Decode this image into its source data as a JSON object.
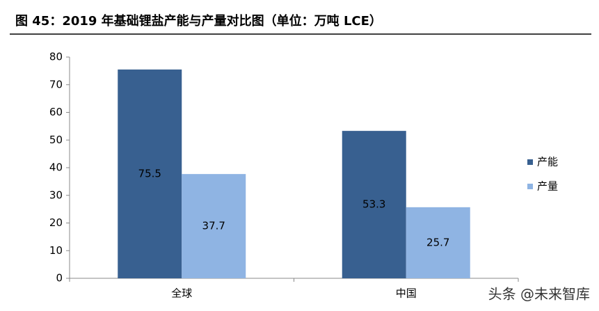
{
  "chart_data": {
    "type": "bar",
    "title": "图 45：2019 年基础锂盐产能与产量对比图（单位：万吨 LCE）",
    "categories": [
      "全球",
      "中国"
    ],
    "series": [
      {
        "name": "产能",
        "color": "#386090",
        "values": [
          75.5,
          53.3
        ]
      },
      {
        "name": "产量",
        "color": "#8fb4e3",
        "values": [
          37.7,
          25.7
        ]
      }
    ],
    "ylim": [
      0,
      80
    ],
    "yticks": [
      0,
      10,
      20,
      30,
      40,
      50,
      60,
      70,
      80
    ],
    "grid": false,
    "legend": "right",
    "watermark": "头条 @未来智库"
  }
}
